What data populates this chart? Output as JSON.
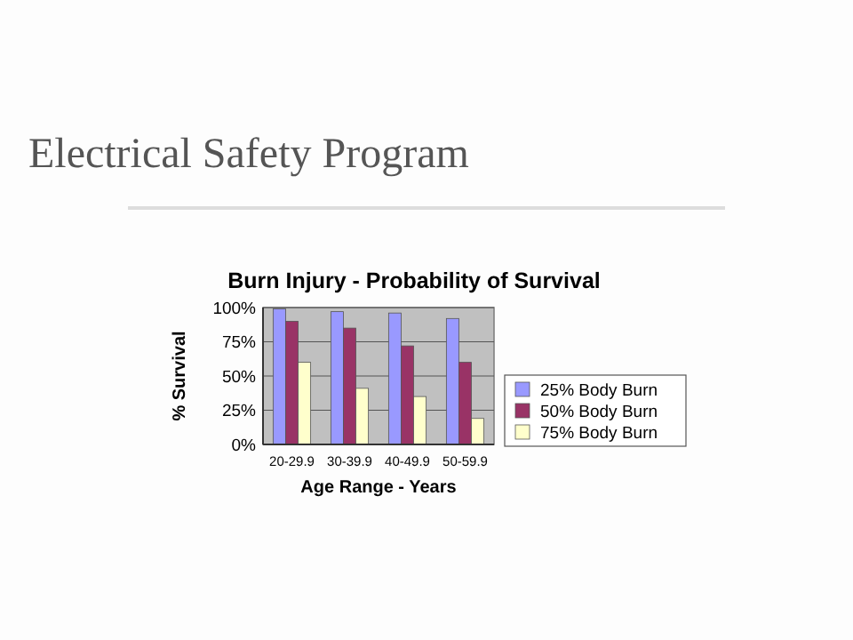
{
  "chart_data": {
    "type": "bar",
    "title": "Electrical Safety Program",
    "subtitle": "Burn Injury - Probability of Survival",
    "xlabel": "Age Range - Years",
    "ylabel": "% Survival",
    "categories": [
      "20-29.9",
      "30-39.9",
      "40-49.9",
      "50-59.9"
    ],
    "series": [
      {
        "name": "25% Body Burn",
        "color": "#9999ff",
        "values": [
          99,
          97,
          96,
          92
        ]
      },
      {
        "name": "50% Body Burn",
        "color": "#993366",
        "values": [
          90,
          85,
          72,
          60
        ]
      },
      {
        "name": "75% Body Burn",
        "color": "#ffffcc",
        "values": [
          60,
          41,
          35,
          19
        ]
      }
    ],
    "ylim": [
      0,
      100
    ],
    "yticks": [
      {
        "value": 0,
        "label": "0%"
      },
      {
        "value": 25,
        "label": "25%"
      },
      {
        "value": 50,
        "label": "50%"
      },
      {
        "value": 75,
        "label": "75%"
      },
      {
        "value": 100,
        "label": "100%"
      }
    ],
    "grid": "y",
    "legend": "right"
  }
}
